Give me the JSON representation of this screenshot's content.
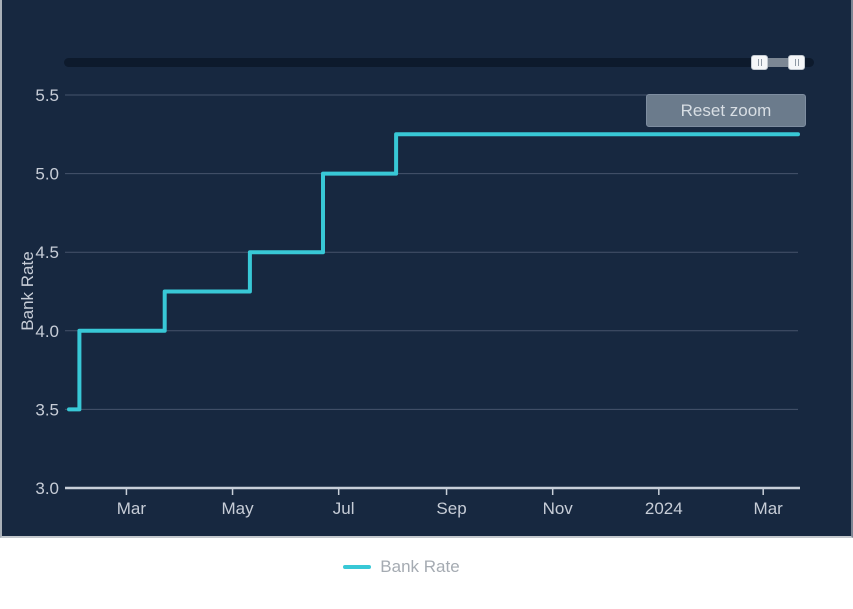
{
  "chart": {
    "reset_zoom_label": "Reset zoom",
    "colors": {
      "panel_background": "#172840",
      "series_line": "#38c8d6",
      "gridline": "#46536b",
      "axis_line": "#c8cfd9",
      "axis_label": "#c7cdd7",
      "button_background": "#6b7b8c",
      "button_text": "#d8dee4",
      "navigator_track": "#0d1a2c",
      "navigator_range": "#7c8794",
      "navigator_handle": "#f4f6f8",
      "legend_text": "#a5abb2",
      "page_background": "#ffffff"
    }
  },
  "chart_data": {
    "type": "line",
    "step": true,
    "title": "",
    "xlabel": "",
    "ylabel": "Bank Rate",
    "ylim": [
      3.0,
      5.5
    ],
    "y_ticks": [
      3.0,
      3.5,
      4.0,
      4.5,
      5.0,
      5.5
    ],
    "x_domain": [
      "2023-01-27",
      "2024-03-21"
    ],
    "x_ticks": [
      {
        "date": "2023-03-01",
        "label": "Mar"
      },
      {
        "date": "2023-05-01",
        "label": "May"
      },
      {
        "date": "2023-07-01",
        "label": "Jul"
      },
      {
        "date": "2023-09-01",
        "label": "Sep"
      },
      {
        "date": "2023-11-01",
        "label": "Nov"
      },
      {
        "date": "2024-01-01",
        "label": "2024"
      },
      {
        "date": "2024-03-01",
        "label": "Mar"
      }
    ],
    "grid": true,
    "legend_position": "bottom",
    "series": [
      {
        "name": "Bank Rate",
        "color": "#38c8d6",
        "points": [
          {
            "x": "2023-01-27",
            "y": 3.5
          },
          {
            "x": "2023-02-02",
            "y": 4.0
          },
          {
            "x": "2023-03-23",
            "y": 4.25
          },
          {
            "x": "2023-05-11",
            "y": 4.5
          },
          {
            "x": "2023-06-22",
            "y": 5.0
          },
          {
            "x": "2023-08-03",
            "y": 5.25
          },
          {
            "x": "2024-03-21",
            "y": 5.25
          }
        ]
      }
    ]
  }
}
